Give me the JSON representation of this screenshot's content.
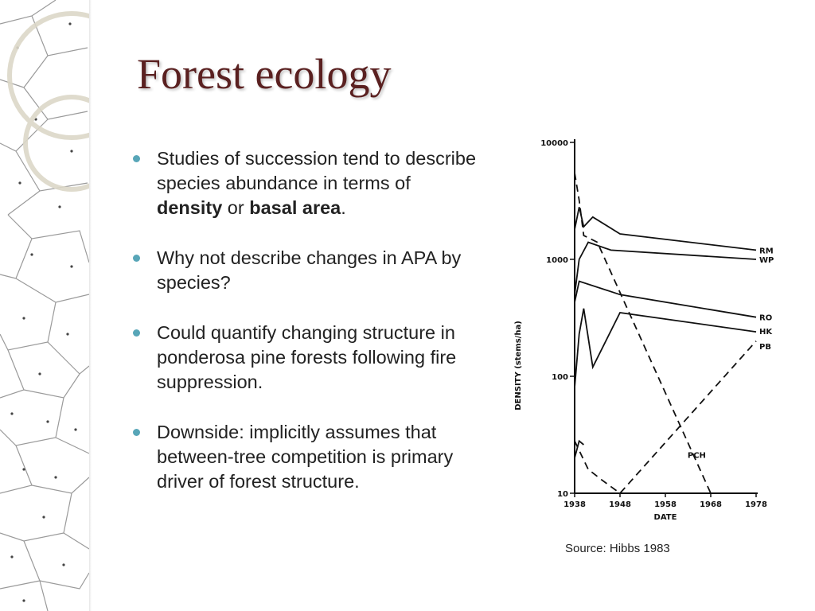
{
  "slide": {
    "title": "Forest ecology",
    "bullets": [
      {
        "parts": [
          {
            "text": "Studies of succession tend to describe species abundance in terms of ",
            "bold": false
          },
          {
            "text": "density",
            "bold": true
          },
          {
            "text": " or ",
            "bold": false
          },
          {
            "text": "basal area",
            "bold": true
          },
          {
            "text": ".",
            "bold": false
          }
        ]
      },
      {
        "parts": [
          {
            "text": "Why not describe changes in APA by species?",
            "bold": false
          }
        ]
      },
      {
        "parts": [
          {
            "text": "Could quantify changing structure in ponderosa pine forests following fire suppression.",
            "bold": false
          }
        ]
      },
      {
        "parts": [
          {
            "text": "Downside: implicitly assumes that between-tree competition is primary driver of forest structure.",
            "bold": false
          }
        ]
      }
    ],
    "source": "Source: Hibbs 1983",
    "colors": {
      "title": "#5a2020",
      "bullet": "#58a6b8"
    }
  },
  "chart_data": {
    "type": "line",
    "xlabel": "DATE",
    "ylabel": "DENSITY (stems/ha)",
    "x_ticks": [
      "1938",
      "1948",
      "1958",
      "1968",
      "1978"
    ],
    "y_ticks": [
      "10",
      "100",
      "1000",
      "10000"
    ],
    "xlim": [
      1938,
      1978
    ],
    "ylim": [
      10,
      10000
    ],
    "yscale": "log",
    "series": [
      {
        "name": "RM",
        "style": "solid",
        "points": [
          [
            1938,
            1800
          ],
          [
            1939,
            2800
          ],
          [
            1940,
            1900
          ],
          [
            1942,
            2300
          ],
          [
            1948,
            1650
          ],
          [
            1978,
            1200
          ]
        ]
      },
      {
        "name": "WP",
        "style": "solid",
        "points": [
          [
            1938,
            500
          ],
          [
            1939,
            1000
          ],
          [
            1941,
            1400
          ],
          [
            1946,
            1200
          ],
          [
            1978,
            1000
          ]
        ]
      },
      {
        "name": "RO",
        "style": "solid",
        "points": [
          [
            1938,
            430
          ],
          [
            1939,
            650
          ],
          [
            1948,
            500
          ],
          [
            1978,
            320
          ]
        ]
      },
      {
        "name": "HK",
        "style": "solid",
        "points": [
          [
            1938,
            80
          ],
          [
            1939,
            230
          ],
          [
            1940,
            380
          ],
          [
            1942,
            120
          ],
          [
            1948,
            350
          ],
          [
            1978,
            240
          ]
        ]
      },
      {
        "name": "PB",
        "style": "solid",
        "points": [
          [
            1938,
            20
          ],
          [
            1939,
            28
          ],
          [
            1940,
            26
          ]
        ]
      },
      {
        "name": "PCH",
        "style": "dashed",
        "points": [
          [
            1938,
            5500
          ],
          [
            1939,
            3200
          ],
          [
            1940,
            1600
          ],
          [
            1943,
            1400
          ],
          [
            1968,
            10
          ]
        ]
      },
      {
        "name": "",
        "style": "dashed",
        "points": [
          [
            1938,
            28
          ],
          [
            1941,
            16
          ],
          [
            1944,
            13
          ],
          [
            1948,
            10
          ],
          [
            1978,
            200
          ]
        ]
      }
    ],
    "labels": [
      "RM",
      "WP",
      "RO",
      "HK",
      "PB",
      "PCH"
    ]
  }
}
